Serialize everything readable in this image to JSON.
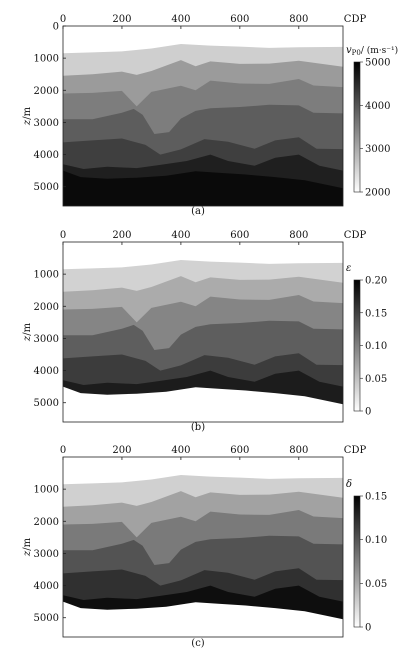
{
  "figure": {
    "x_axis_label": "CDP",
    "y_axis_label": "z/m",
    "y_axis_label_var": "z",
    "y_axis_label_unit": "m"
  },
  "chart_data": [
    {
      "type": "heatmap",
      "caption": "(a)",
      "xlabel": "CDP",
      "ylabel": "z/m",
      "xlim": [
        0,
        950
      ],
      "ylim": [
        5600,
        0
      ],
      "xticks": [
        "0",
        "200",
        "400",
        "600",
        "800"
      ],
      "yticks": [
        "0",
        "1000",
        "2000",
        "3000",
        "4000",
        "5000"
      ],
      "colorbar": {
        "symbol": "v",
        "subscript": "P0",
        "unit": "(m·s⁻¹)",
        "separator": "/",
        "range": [
          2000,
          5000
        ],
        "ticks": [
          "2000",
          "3000",
          "4000",
          "5000"
        ]
      },
      "bottom_region": "dark",
      "layer_colors": [
        "#ffffff",
        "#cfcfcf",
        "#9b9b9b",
        "#7d7d7d",
        "#5d5d5d",
        "#3f3f3f",
        "#1f1f1f",
        "#0a0a0a"
      ]
    },
    {
      "type": "heatmap",
      "caption": "(b)",
      "xlabel": "CDP",
      "ylabel": "z/m",
      "xlim": [
        0,
        950
      ],
      "ylim": [
        5600,
        0
      ],
      "xticks": [
        "0",
        "200",
        "400",
        "600",
        "800"
      ],
      "yticks": [
        "1000",
        "2000",
        "3000",
        "4000",
        "5000"
      ],
      "colorbar": {
        "symbol": "ε",
        "subscript": "",
        "unit": "",
        "separator": "",
        "range": [
          0,
          0.2
        ],
        "ticks": [
          "0",
          "0.05",
          "0.10",
          "0.15",
          "0.20"
        ]
      },
      "bottom_region": "white",
      "layer_colors": [
        "#ffffff",
        "#d2d2d2",
        "#ababab",
        "#858585",
        "#5e5e5e",
        "#3c3c3c",
        "#1c1c1c",
        "#ffffff"
      ]
    },
    {
      "type": "heatmap",
      "caption": "(c)",
      "xlabel": "CDP",
      "ylabel": "z/m",
      "xlim": [
        0,
        950
      ],
      "ylim": [
        5600,
        0
      ],
      "xticks": [
        "0",
        "200",
        "400",
        "600",
        "800"
      ],
      "yticks": [
        "1000",
        "2000",
        "3000",
        "4000",
        "5000"
      ],
      "colorbar": {
        "symbol": "δ",
        "subscript": "",
        "unit": "",
        "separator": "",
        "range": [
          0,
          0.15
        ],
        "ticks": [
          "0",
          "0.05",
          "0.10",
          "0.15"
        ]
      },
      "bottom_region": "white",
      "layer_colors": [
        "#ffffff",
        "#d0d0d0",
        "#a2a2a2",
        "#7a7a7a",
        "#535353",
        "#303030",
        "#0e0e0e",
        "#ffffff"
      ]
    }
  ]
}
